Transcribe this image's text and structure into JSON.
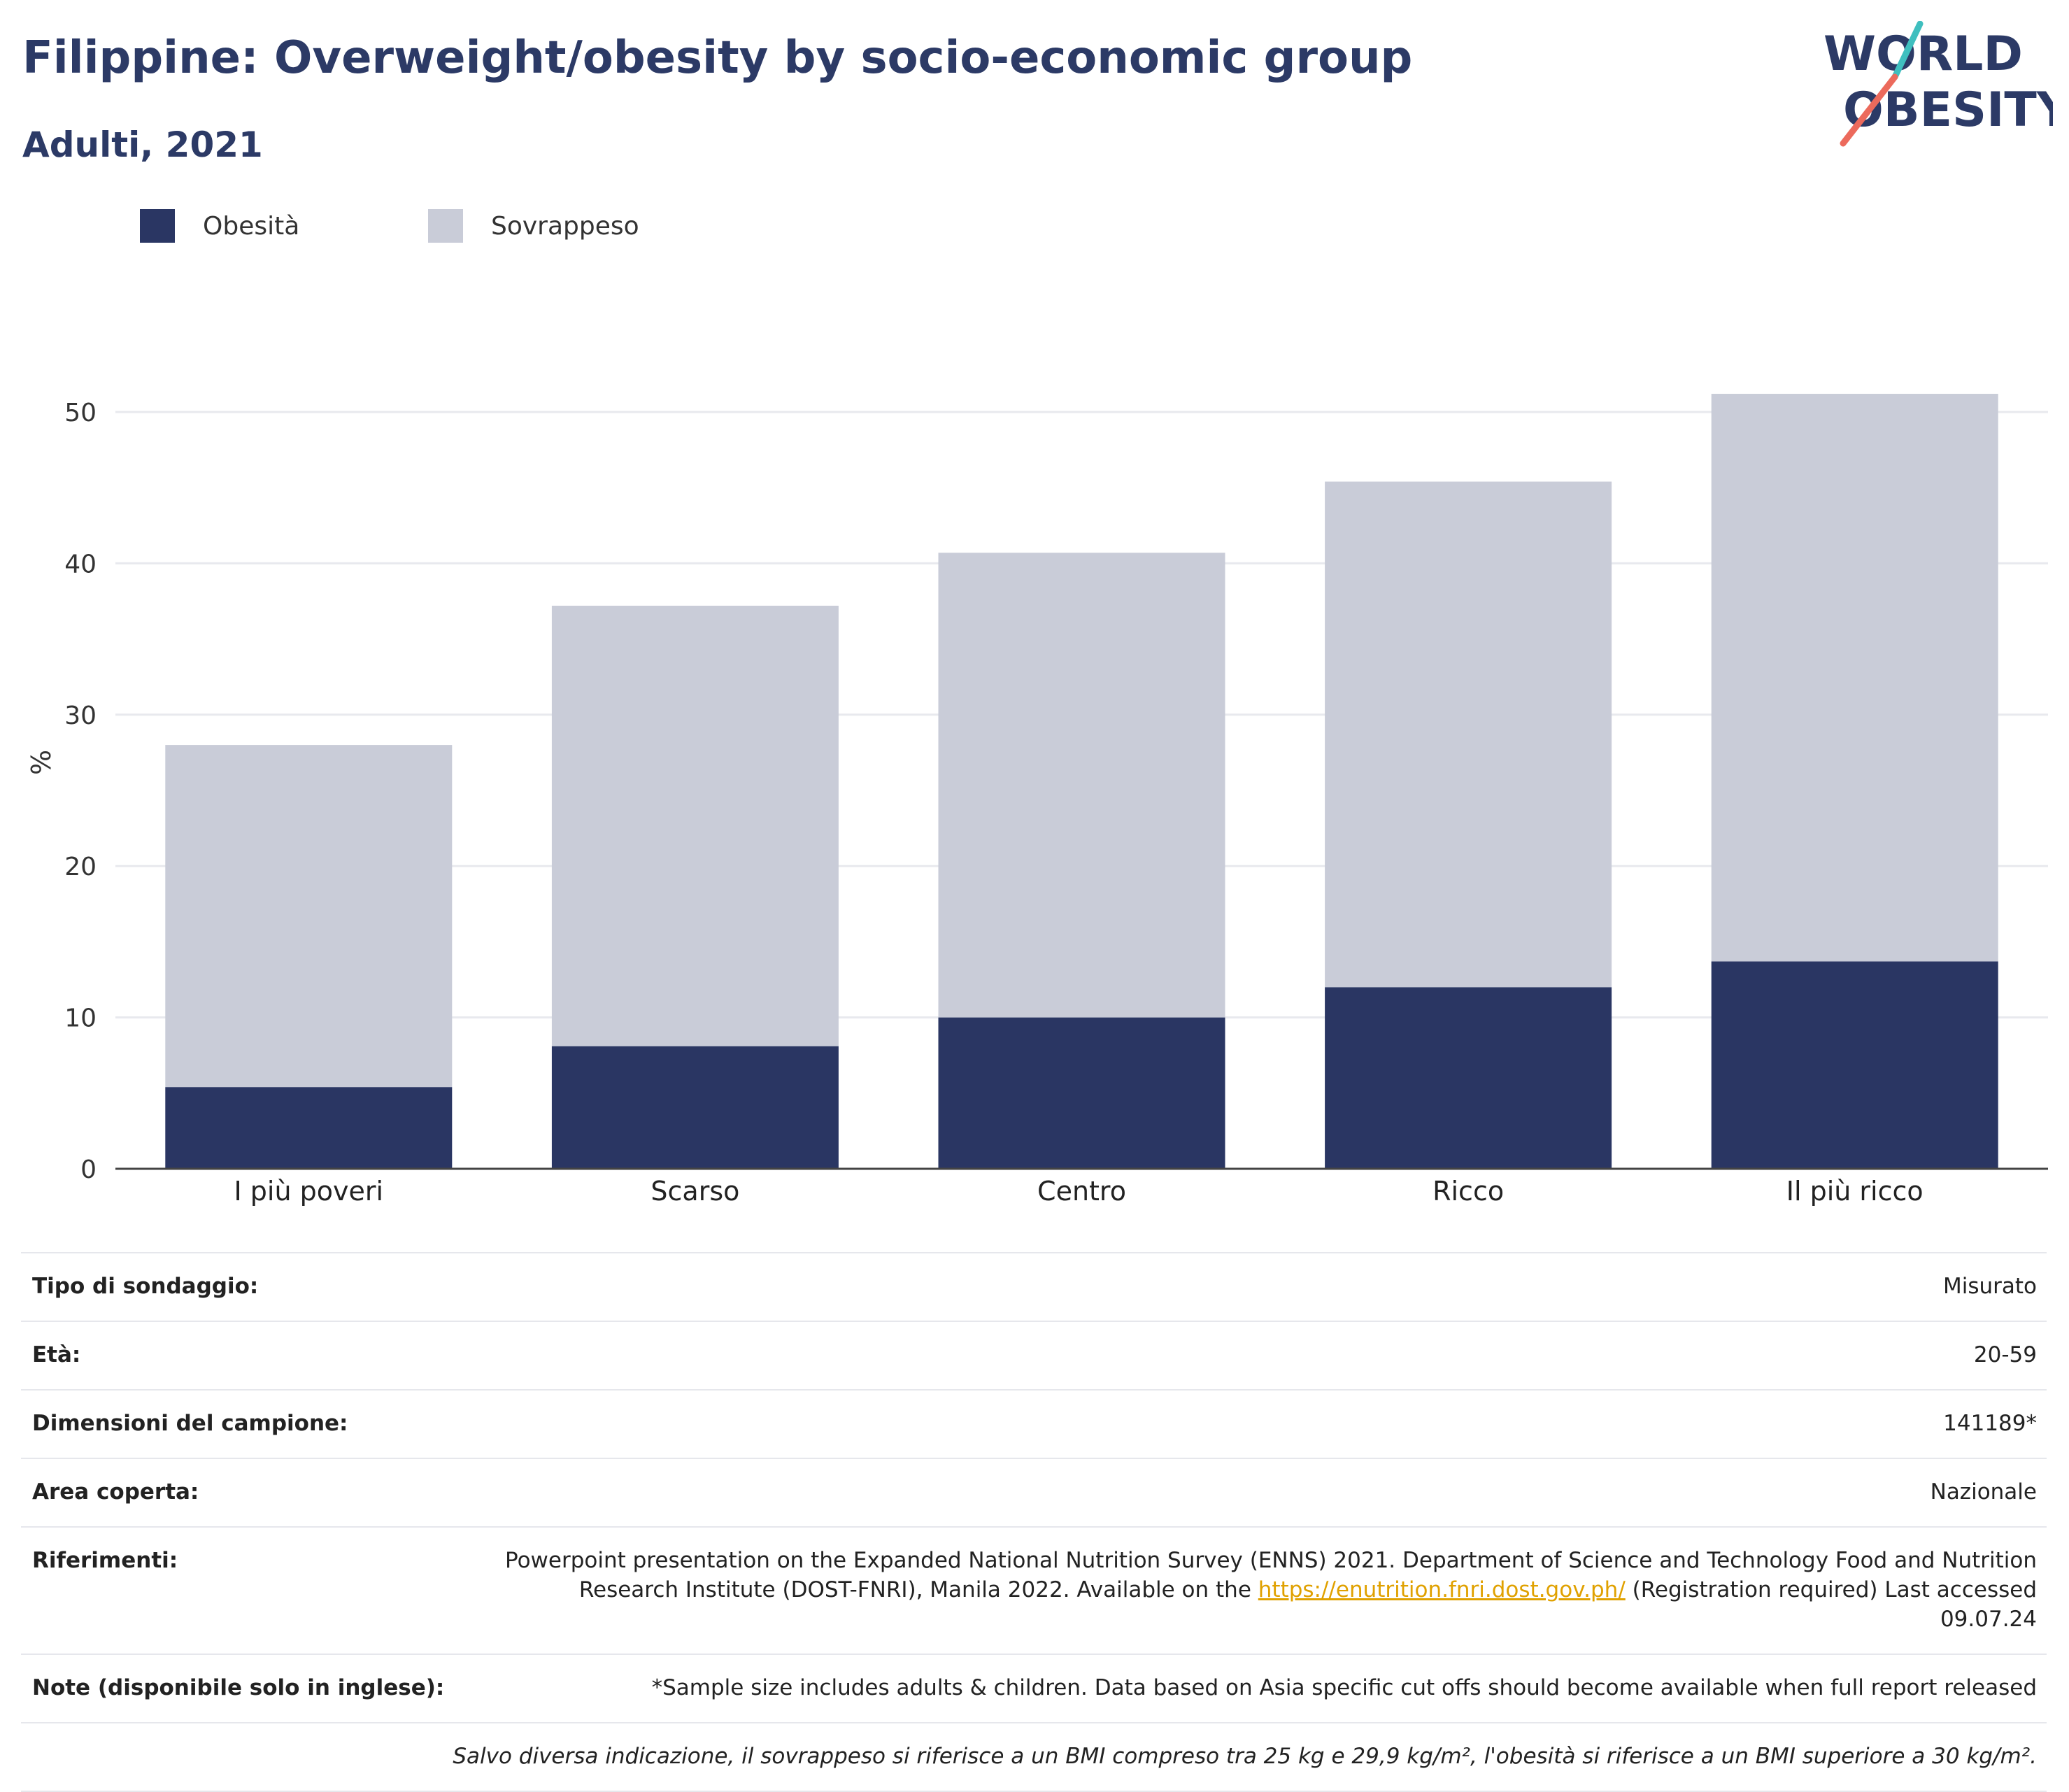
{
  "title": "Filippine: Overweight/obesity by socio-economic group",
  "subtitle": "Adulti, 2021",
  "logo": {
    "line1": "WORLD",
    "line2": "OBESITY"
  },
  "colors": {
    "obesity": "#2a3663",
    "overweight": "#c9ccd8",
    "title": "#2c3a66",
    "logo_teal": "#3fbfbf",
    "logo_coral": "#ec6a5c",
    "link": "#e0a100"
  },
  "legend": [
    {
      "label": "Obesità",
      "color": "#2a3663"
    },
    {
      "label": "Sovrappeso",
      "color": "#c9ccd8"
    }
  ],
  "chart_data": {
    "type": "bar",
    "stacked": true,
    "categories": [
      "I più poveri",
      "Scarso",
      "Centro",
      "Ricco",
      "Il più ricco"
    ],
    "series": [
      {
        "name": "Obesità",
        "values": [
          5.4,
          8.1,
          10.0,
          12.0,
          13.7
        ]
      },
      {
        "name": "Sovrappeso",
        "values": [
          22.6,
          29.1,
          30.7,
          33.4,
          37.5
        ]
      }
    ],
    "ylabel": "%",
    "ylim": [
      0,
      55
    ],
    "yticks": [
      0,
      10,
      20,
      30,
      40,
      50
    ],
    "grid": true,
    "legend_position": "top-left"
  },
  "info": {
    "rows": [
      {
        "label": "Tipo di sondaggio:",
        "value": "Misurato"
      },
      {
        "label": "Età:",
        "value": "20-59"
      },
      {
        "label": "Dimensioni del campione:",
        "value": "141189*"
      },
      {
        "label": "Area coperta:",
        "value": "Nazionale"
      }
    ],
    "references": {
      "label": "Riferimenti:",
      "text_before": "Powerpoint presentation on the Expanded National Nutrition Survey (ENNS) 2021. Department of Science and Technology Food and Nutrition Research Institute (DOST-FNRI), Manila 2022. Available on the",
      "link": "https://enutrition.fnri.dost.gov.ph/",
      "text_after": "(Registration required) Last accessed 09.07.24"
    },
    "notes": {
      "label": "Note (disponibile solo in inglese):",
      "value": "*Sample size includes adults & children. Data based on Asia specific cut offs should become available when full report released"
    },
    "footnote": "Salvo diversa indicazione, il sovrappeso si riferisce a un BMI compreso tra 25 kg e 29,9 kg/m², l'obesità si riferisce a un BMI superiore a 30 kg/m²."
  }
}
